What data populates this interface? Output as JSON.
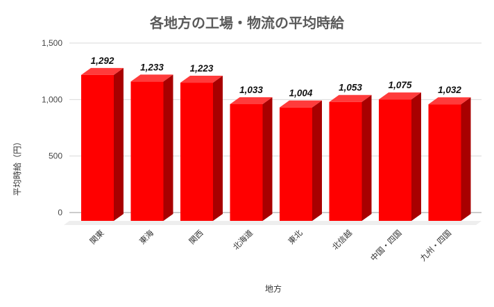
{
  "chart_data": {
    "type": "bar",
    "title": "各地方の工場・物流の平均時給",
    "xlabel": "地方",
    "ylabel": "平均時給（円）",
    "categories": [
      "関東",
      "東海",
      "関西",
      "北海道",
      "東北",
      "北信越",
      "中国・四国",
      "九州・四国"
    ],
    "values": [
      1292,
      1233,
      1223,
      1033,
      1004,
      1053,
      1075,
      1032
    ],
    "value_labels": [
      "1,292",
      "1,233",
      "1,223",
      "1,033",
      "1,004",
      "1,053",
      "1,075",
      "1,032"
    ],
    "yticks": [
      "0",
      "500",
      "1,000",
      "1,500"
    ],
    "ylim": [
      0,
      1500
    ],
    "grid": true,
    "legend": "none",
    "colors": {
      "bar_front": "#ff0000",
      "bar_top": "#ff3b3b",
      "bar_side": "#a80000"
    }
  }
}
